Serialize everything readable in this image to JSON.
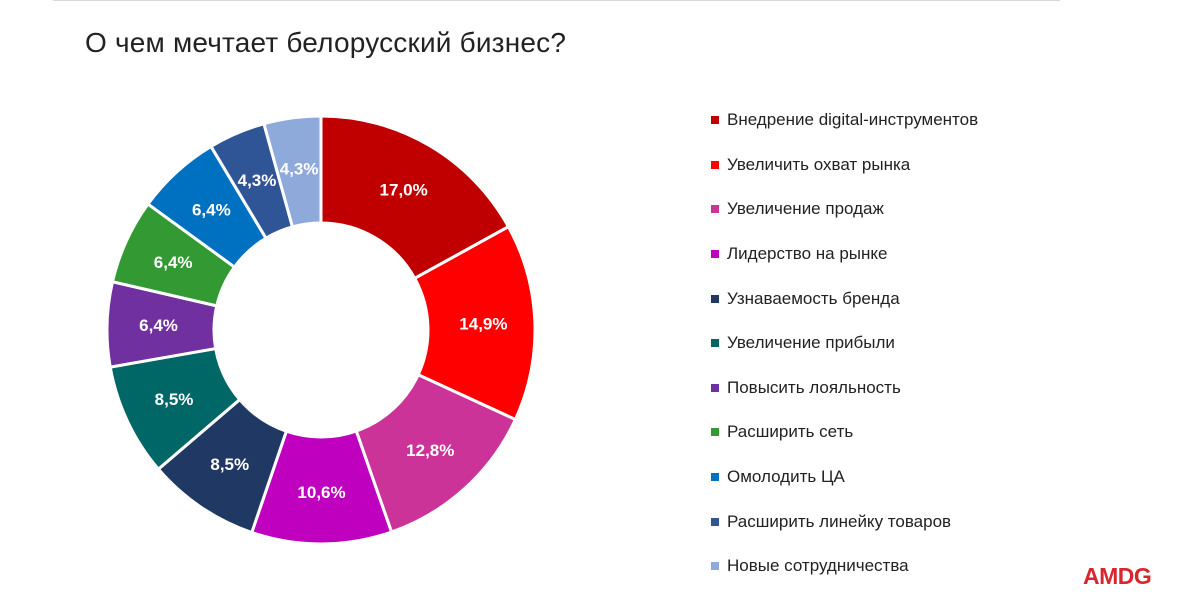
{
  "title": "О чем мечтает белорусский бизнес?",
  "logo": "AMDG",
  "chart_data": {
    "type": "pie",
    "donut": true,
    "title": "О чем мечтает белорусский бизнес?",
    "legend_position": "right",
    "unit": "%",
    "categories": [
      "Внедрение digital-инструментов",
      "Увеличить охват рынка",
      "Увеличение продаж",
      "Лидерство на рынке",
      "Узнаваемость бренда",
      "Увеличение прибыли",
      "Повысить лояльность",
      "Расширить сеть",
      "Омолодить ЦА",
      "Расширить линейку товаров",
      "Новые сотрудничества"
    ],
    "values": [
      17.0,
      14.9,
      12.8,
      10.6,
      8.5,
      8.5,
      6.4,
      6.4,
      6.4,
      4.3,
      4.3
    ],
    "value_labels": [
      "17,0%",
      "14,9%",
      "12,8%",
      "10,6%",
      "8,5%",
      "8,5%",
      "6,4%",
      "6,4%",
      "6,4%",
      "4,3%",
      "4,3%"
    ],
    "colors": [
      "#c00000",
      "#ff0000",
      "#cc3399",
      "#bf00bf",
      "#1f3864",
      "#006666",
      "#7030a0",
      "#339933",
      "#0070c0",
      "#2f5597",
      "#8eaadb"
    ]
  }
}
